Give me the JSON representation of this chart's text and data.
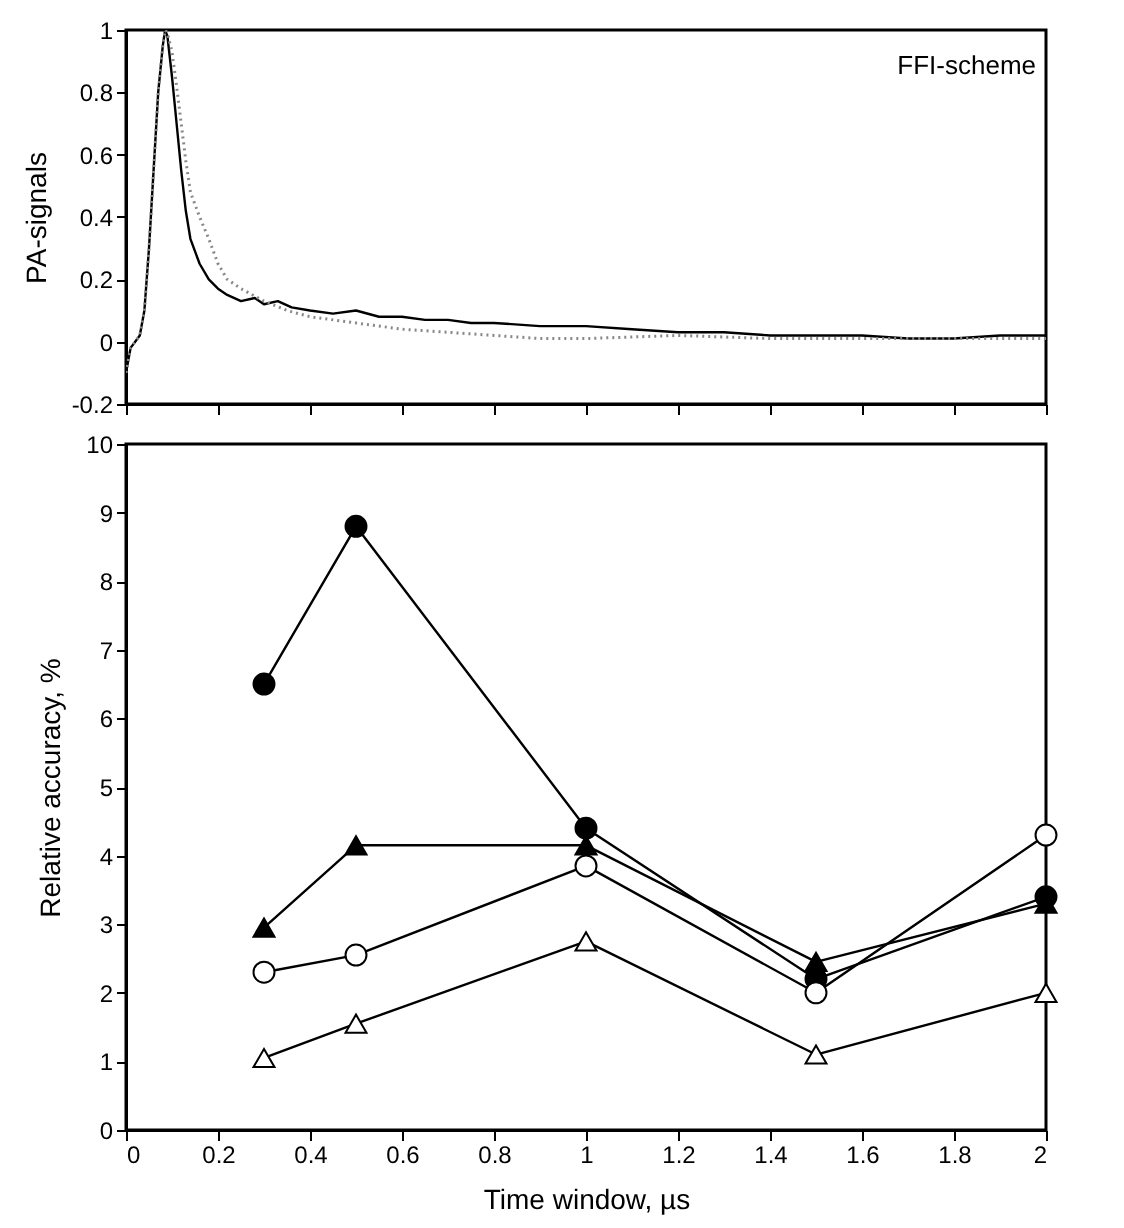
{
  "chart_data": [
    {
      "type": "line",
      "ylabel": "PA-signals",
      "annotations": [
        "FFI-scheme"
      ],
      "xlim": [
        0,
        2
      ],
      "xticks": [
        0,
        0.2,
        0.4,
        0.6,
        0.8,
        1,
        1.2,
        1.4,
        1.6,
        1.8,
        2
      ],
      "ylim": [
        -0.2,
        1
      ],
      "yticks": [
        -0.2,
        0,
        0.2,
        0.4,
        0.6,
        0.8,
        1
      ],
      "tick_labels": "y",
      "marker": "none",
      "grid": false,
      "series": [
        {
          "color": "#000000",
          "line_style": "solid",
          "x": [
            0,
            0.01,
            0.03,
            0.04,
            0.05,
            0.06,
            0.07,
            0.08,
            0.085,
            0.09,
            0.1,
            0.11,
            0.12,
            0.13,
            0.14,
            0.16,
            0.18,
            0.2,
            0.22,
            0.25,
            0.28,
            0.3,
            0.33,
            0.36,
            0.4,
            0.45,
            0.5,
            0.55,
            0.6,
            0.65,
            0.7,
            0.75,
            0.8,
            0.9,
            1.0,
            1.1,
            1.2,
            1.3,
            1.4,
            1.5,
            1.6,
            1.7,
            1.8,
            1.9,
            2.0
          ],
          "values": [
            -0.1,
            -0.02,
            0.02,
            0.1,
            0.3,
            0.55,
            0.8,
            0.95,
            1.0,
            0.98,
            0.85,
            0.7,
            0.55,
            0.42,
            0.33,
            0.25,
            0.2,
            0.17,
            0.15,
            0.13,
            0.14,
            0.12,
            0.13,
            0.11,
            0.1,
            0.09,
            0.1,
            0.08,
            0.08,
            0.07,
            0.07,
            0.06,
            0.06,
            0.05,
            0.05,
            0.04,
            0.03,
            0.03,
            0.02,
            0.02,
            0.02,
            0.01,
            0.01,
            0.02,
            0.02
          ]
        },
        {
          "color": "#888888",
          "line_style": "dotted",
          "x": [
            0,
            0.01,
            0.03,
            0.04,
            0.05,
            0.06,
            0.07,
            0.08,
            0.085,
            0.09,
            0.1,
            0.11,
            0.12,
            0.13,
            0.14,
            0.16,
            0.18,
            0.2,
            0.22,
            0.25,
            0.3,
            0.35,
            0.4,
            0.5,
            0.6,
            0.7,
            0.8,
            0.9,
            1.0,
            1.2,
            1.4,
            1.6,
            1.8,
            2.0
          ],
          "values": [
            -0.1,
            -0.02,
            0.02,
            0.1,
            0.3,
            0.55,
            0.8,
            0.95,
            1.0,
            0.99,
            0.93,
            0.82,
            0.7,
            0.58,
            0.48,
            0.4,
            0.33,
            0.25,
            0.2,
            0.17,
            0.13,
            0.1,
            0.08,
            0.06,
            0.04,
            0.03,
            0.02,
            0.01,
            0.01,
            0.02,
            0.01,
            0.01,
            0.01,
            0.01
          ]
        }
      ]
    },
    {
      "type": "line",
      "xlabel": "Time window, µs",
      "ylabel": "Relative accuracy, %",
      "xlim": [
        0,
        2
      ],
      "xticks": [
        0,
        0.2,
        0.4,
        0.6,
        0.8,
        1,
        1.2,
        1.4,
        1.6,
        1.8,
        2
      ],
      "ylim": [
        0,
        10
      ],
      "yticks": [
        0,
        1,
        2,
        3,
        4,
        5,
        6,
        7,
        8,
        9,
        10
      ],
      "grid": false,
      "line_style": "solid",
      "x": [
        0.3,
        0.5,
        1,
        1.5,
        2
      ],
      "series": [
        {
          "color": "#000000",
          "marker": "circle",
          "values": [
            6.5,
            8.8,
            4.4,
            2.2,
            3.4
          ]
        },
        {
          "color": "#000000",
          "marker": "triangle",
          "values": [
            2.95,
            4.15,
            4.15,
            2.45,
            3.3
          ]
        },
        {
          "color": "#ffffff",
          "marker": "circle",
          "values": [
            2.3,
            2.55,
            3.85,
            2.0,
            4.3
          ]
        },
        {
          "color": "#ffffff",
          "marker": "triangle",
          "values": [
            1.05,
            1.55,
            2.75,
            1.1,
            2.0
          ]
        }
      ]
    }
  ]
}
